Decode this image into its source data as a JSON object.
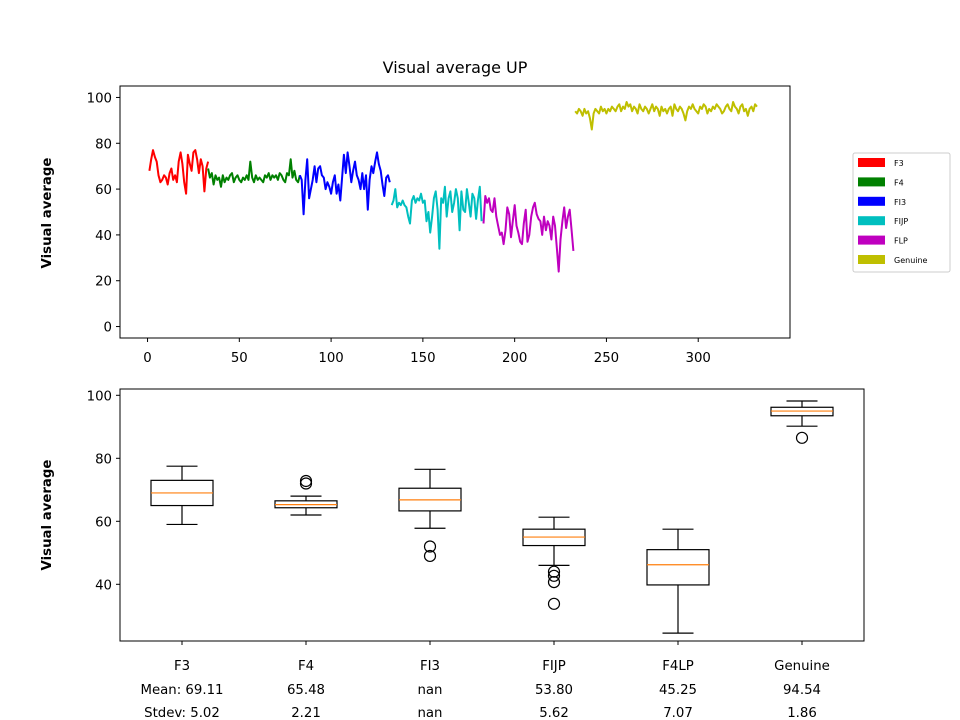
{
  "chart_data": [
    {
      "type": "line",
      "title": "Visual average UP",
      "xlabel": "",
      "ylabel": "Visual average",
      "xlim": [
        -15,
        350
      ],
      "ylim": [
        -5,
        105
      ],
      "xticks": [
        0,
        50,
        100,
        150,
        200,
        250,
        300
      ],
      "yticks": [
        0,
        20,
        40,
        60,
        80,
        100
      ],
      "grid": false,
      "legend_position": "right, outside",
      "series": [
        {
          "name": "F3",
          "color": "#ff0000",
          "x_start": 1,
          "values": [
            68,
            73,
            77,
            74,
            72,
            66,
            63,
            64,
            66,
            65,
            62,
            67,
            69,
            64,
            66,
            63,
            72,
            76,
            71,
            63,
            58,
            75,
            71,
            68,
            76,
            77,
            73,
            67,
            73,
            70,
            59,
            69,
            72
          ]
        },
        {
          "name": "F4",
          "color": "#008000",
          "x_start": 33,
          "values": [
            69,
            65,
            67,
            62,
            66,
            64,
            65,
            61,
            66,
            63,
            65,
            64,
            66,
            67,
            63,
            65,
            66,
            64,
            63,
            65,
            64,
            66,
            64,
            72,
            65,
            63,
            66,
            64,
            65,
            64,
            63,
            66,
            65,
            67,
            64,
            66,
            65,
            66,
            64,
            67,
            66,
            64,
            63,
            67,
            66,
            73,
            65,
            68,
            64,
            63,
            66
          ]
        },
        {
          "name": "FI3",
          "color": "#0000ff",
          "x_start": 83,
          "values": [
            66,
            64,
            49,
            64,
            73,
            56,
            60,
            64,
            70,
            63,
            69,
            70,
            66,
            65,
            60,
            63,
            61,
            58,
            63,
            66,
            58,
            62,
            55,
            65,
            75,
            67,
            76,
            70,
            63,
            68,
            72,
            66,
            64,
            60,
            67,
            60,
            66,
            51,
            64,
            70,
            67,
            72,
            76,
            71,
            68,
            62,
            57,
            65,
            66,
            63
          ]
        },
        {
          "name": "FIJP",
          "color": "#00bfbf",
          "x_start": 133,
          "values": [
            53,
            55,
            60,
            52,
            54,
            53,
            55,
            53,
            52,
            48,
            45,
            55,
            57,
            54,
            56,
            55,
            58,
            54,
            55,
            46,
            50,
            41,
            48,
            56,
            59,
            51,
            34,
            56,
            54,
            61,
            48,
            56,
            59,
            50,
            54,
            60,
            56,
            42,
            59,
            51,
            50,
            60,
            54,
            48,
            58,
            56,
            47,
            55,
            61,
            46
          ]
        },
        {
          "name": "FLP",
          "color": "#bf00bf",
          "x_start": 183,
          "values": [
            45,
            57,
            54,
            56,
            51,
            50,
            56,
            48,
            44,
            40,
            41,
            36,
            42,
            52,
            49,
            39,
            46,
            53,
            44,
            41,
            37,
            36,
            45,
            51,
            37,
            40,
            48,
            52,
            54,
            49,
            47,
            46,
            40,
            48,
            42,
            46,
            44,
            38,
            48,
            44,
            34,
            24,
            38,
            46,
            52,
            43,
            48,
            51,
            42,
            33
          ]
        },
        {
          "name": "Genuine",
          "color": "#bfbf00",
          "x_start": 233,
          "values": [
            94,
            93,
            95,
            94,
            92,
            95,
            93,
            94,
            91,
            86,
            93,
            95,
            94,
            93,
            96,
            94,
            95,
            93,
            95,
            94,
            96,
            95,
            94,
            96,
            97,
            94,
            96,
            95,
            98,
            96,
            97,
            94,
            96,
            95,
            93,
            97,
            95,
            94,
            96,
            95,
            93,
            95,
            97,
            94,
            96,
            95,
            92,
            96,
            94,
            95,
            93,
            95,
            96,
            92,
            97,
            95,
            94,
            96,
            95,
            93,
            90,
            94,
            96,
            95,
            97,
            95,
            94,
            93,
            96,
            95,
            97,
            96,
            93,
            95,
            94,
            96,
            95,
            97,
            96,
            95,
            93,
            94,
            96,
            97,
            95,
            94,
            98,
            96,
            95,
            93,
            96,
            97,
            94,
            95,
            92,
            95,
            96,
            94,
            97,
            96
          ]
        }
      ]
    },
    {
      "type": "box",
      "title": "",
      "xlabel": "",
      "ylabel": "Visual average",
      "ylim": [
        22,
        102
      ],
      "yticks": [
        40,
        60,
        80,
        100
      ],
      "grid": false,
      "categories": [
        "F3",
        "F4",
        "FI3",
        "FIJP",
        "F4LP",
        "Genuine"
      ],
      "stats_labels": {
        "mean_prefix": "Mean: ",
        "stdev_prefix": "Stdev: "
      },
      "means": [
        "69.11",
        "65.48",
        "nan",
        "53.80",
        "45.25",
        "94.54"
      ],
      "stdevs": [
        "5.02",
        "2.21",
        "nan",
        "5.62",
        "7.07",
        "1.86"
      ],
      "boxes": [
        {
          "whislo": 59,
          "q1": 65,
          "med": 69,
          "q3": 73,
          "whishi": 77.5,
          "fliers": []
        },
        {
          "whislo": 62,
          "q1": 64.3,
          "med": 65.3,
          "q3": 66.5,
          "whishi": 68,
          "fliers": [
            72,
            72.8
          ]
        },
        {
          "whislo": 57.8,
          "q1": 63.3,
          "med": 66.8,
          "q3": 70.5,
          "whishi": 76.5,
          "fliers": [
            49,
            52
          ]
        },
        {
          "whislo": 46,
          "q1": 52.3,
          "med": 55,
          "q3": 57.5,
          "whishi": 61.3,
          "fliers": [
            44,
            42.7,
            40.7,
            33.8
          ]
        },
        {
          "whislo": 24.5,
          "q1": 39.8,
          "med": 46.2,
          "q3": 51,
          "whishi": 57.5,
          "fliers": []
        },
        {
          "whislo": 90.2,
          "q1": 93.5,
          "med": 95,
          "q3": 96.2,
          "whishi": 98.2,
          "fliers": [
            86.5
          ]
        }
      ],
      "median_color": "#ff7f0e"
    }
  ]
}
